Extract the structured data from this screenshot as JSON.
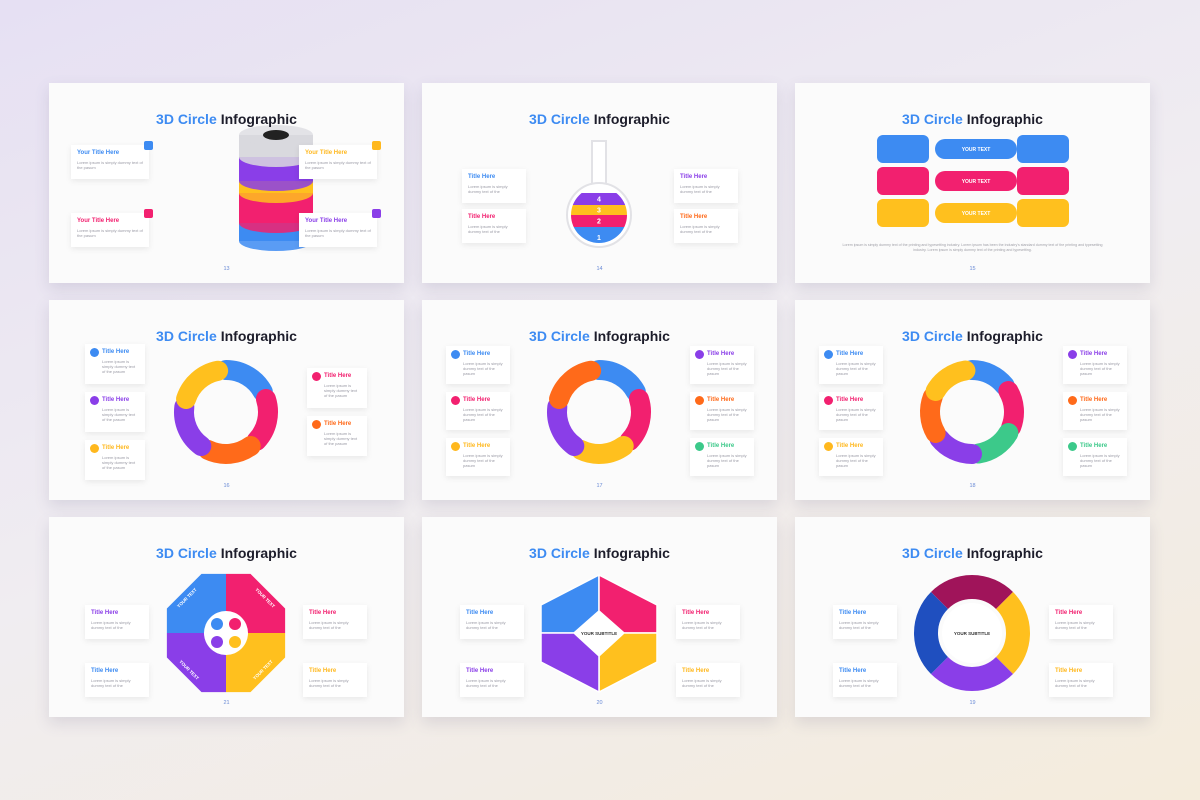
{
  "slides": [
    {
      "title_accent": "3D Circle",
      "title_main": "Infographic",
      "page": "13",
      "cards": [
        {
          "title": "Your Title Here",
          "body": "Lorem ipsum is simply dummy text of the pasum",
          "color": "#3d8bf2"
        },
        {
          "title": "Your Title Here",
          "body": "Lorem ipsum is simply dummy text of the pasum",
          "color": "#f2206f"
        },
        {
          "title": "Your Title Here",
          "body": "Lorem ipsum is simply dummy text of the pasum",
          "color": "#ffb81e"
        },
        {
          "title": "Your Title Here",
          "body": "Lorem ipsum is simply dummy text of the pasum",
          "color": "#8a3ee8"
        }
      ]
    },
    {
      "title_accent": "3D Circle",
      "title_main": "Infographic",
      "page": "14",
      "cards": [
        {
          "title": "Title Here",
          "body": "Lorem ipsum is simply dummy text of the",
          "color": "#3d8bf2"
        },
        {
          "title": "Title Here",
          "body": "Lorem ipsum is simply dummy text of the",
          "color": "#f2206f"
        },
        {
          "title": "Title Here",
          "body": "Lorem ipsum is simply dummy text of the",
          "color": "#8a3ee8"
        },
        {
          "title": "Title Here",
          "body": "Lorem ipsum is simply dummy text of the",
          "color": "#ff6a1a"
        }
      ],
      "labels": [
        "4",
        "3",
        "2",
        "1"
      ]
    },
    {
      "title_accent": "3D Circle",
      "title_main": "Infographic",
      "page": "15",
      "labels": [
        "YOUR TEXT",
        "YOUR TEXT",
        "YOUR TEXT"
      ],
      "paragraph": "Lorem ipsum is simply dummy text of the printing and typesetting industry. Lorem ipsum has been the industry's standard dummy text of the printing and typesetting industry. Lorem ipsum is simply dummy text of the printing and typesetting."
    },
    {
      "title_accent": "3D Circle",
      "title_main": "Infographic",
      "page": "16",
      "cards": [
        {
          "title": "Title Here",
          "body": "Lorem ipsum is simply dummy text of the pasum",
          "color": "#3d8bf2"
        },
        {
          "title": "Title Here",
          "body": "Lorem ipsum is simply dummy text of the pasum",
          "color": "#8a3ee8"
        },
        {
          "title": "Title Here",
          "body": "Lorem ipsum is simply dummy text of the pasum",
          "color": "#ffb81e"
        },
        {
          "title": "Title Here",
          "body": "Lorem ipsum is simply dummy text of the pasum",
          "color": "#f2206f"
        },
        {
          "title": "Title Here",
          "body": "Lorem ipsum is simply dummy text of the pasum",
          "color": "#ff6a1a"
        }
      ]
    },
    {
      "title_accent": "3D Circle",
      "title_main": "Infographic",
      "page": "17",
      "cards": [
        {
          "title": "Title Here",
          "body": "Lorem ipsum is simply dummy text of the pasum",
          "color": "#3d8bf2"
        },
        {
          "title": "Title Here",
          "body": "Lorem ipsum is simply dummy text of the pasum",
          "color": "#f2206f"
        },
        {
          "title": "Title Here",
          "body": "Lorem ipsum is simply dummy text of the pasum",
          "color": "#ffb81e"
        },
        {
          "title": "Title Here",
          "body": "Lorem ipsum is simply dummy text of the pasum",
          "color": "#8a3ee8"
        },
        {
          "title": "Title Here",
          "body": "Lorem ipsum is simply dummy text of the pasum",
          "color": "#ff6a1a"
        },
        {
          "title": "Title Here",
          "body": "Lorem ipsum is simply dummy text of the pasum",
          "color": "#3cc98a"
        }
      ]
    },
    {
      "title_accent": "3D Circle",
      "title_main": "Infographic",
      "page": "18",
      "cards": [
        {
          "title": "Title Here",
          "body": "Lorem ipsum is simply dummy text of the pasum",
          "color": "#3d8bf2"
        },
        {
          "title": "Title Here",
          "body": "Lorem ipsum is simply dummy text of the pasum",
          "color": "#f2206f"
        },
        {
          "title": "Title Here",
          "body": "Lorem ipsum is simply dummy text of the pasum",
          "color": "#ffb81e"
        },
        {
          "title": "Title Here",
          "body": "Lorem ipsum is simply dummy text of the pasum",
          "color": "#8a3ee8"
        },
        {
          "title": "Title Here",
          "body": "Lorem ipsum is simply dummy text of the pasum",
          "color": "#ff6a1a"
        },
        {
          "title": "Title Here",
          "body": "Lorem ipsum is simply dummy text of the pasum",
          "color": "#3cc98a"
        }
      ]
    },
    {
      "title_accent": "3D Circle",
      "title_main": "Infographic",
      "page": "21",
      "cards": [
        {
          "title": "Title Here",
          "body": "Lorem ipsum is simply dummy text of the",
          "color": "#8a3ee8"
        },
        {
          "title": "Title Here",
          "body": "Lorem ipsum is simply dummy text of the",
          "color": "#3d8bf2"
        },
        {
          "title": "Title Here",
          "body": "Lorem ipsum is simply dummy text of the",
          "color": "#f2206f"
        },
        {
          "title": "Title Here",
          "body": "Lorem ipsum is simply dummy text of the",
          "color": "#ffb81e"
        }
      ],
      "labels": [
        "YOUR TEXT",
        "YOUR TEXT",
        "YOUR TEXT",
        "YOUR TEXT"
      ]
    },
    {
      "title_accent": "3D Circle",
      "title_main": "Infographic",
      "page": "20",
      "cards": [
        {
          "title": "Title Here",
          "body": "Lorem ipsum is simply dummy text of the",
          "color": "#3d8bf2"
        },
        {
          "title": "Title Here",
          "body": "Lorem ipsum is simply dummy text of the",
          "color": "#8a3ee8"
        },
        {
          "title": "Title Here",
          "body": "Lorem ipsum is simply dummy text of the",
          "color": "#f2206f"
        },
        {
          "title": "Title Here",
          "body": "Lorem ipsum is simply dummy text of the",
          "color": "#ffb81e"
        }
      ],
      "labels": [
        "YOUR SUBTITLE"
      ]
    },
    {
      "title_accent": "3D Circle",
      "title_main": "Infographic",
      "page": "19",
      "cards": [
        {
          "title": "Title Here",
          "body": "Lorem ipsum is simply dummy text of the",
          "color": "#3d8bf2"
        },
        {
          "title": "Title Here",
          "body": "Lorem ipsum is simply dummy text of the",
          "color": "#3d8bf2"
        },
        {
          "title": "Title Here",
          "body": "Lorem ipsum is simply dummy text of the",
          "color": "#f2206f"
        },
        {
          "title": "Title Here",
          "body": "Lorem ipsum is simply dummy text of the",
          "color": "#ffb81e"
        }
      ],
      "labels": [
        "YOUR SUBTITLE"
      ]
    }
  ]
}
